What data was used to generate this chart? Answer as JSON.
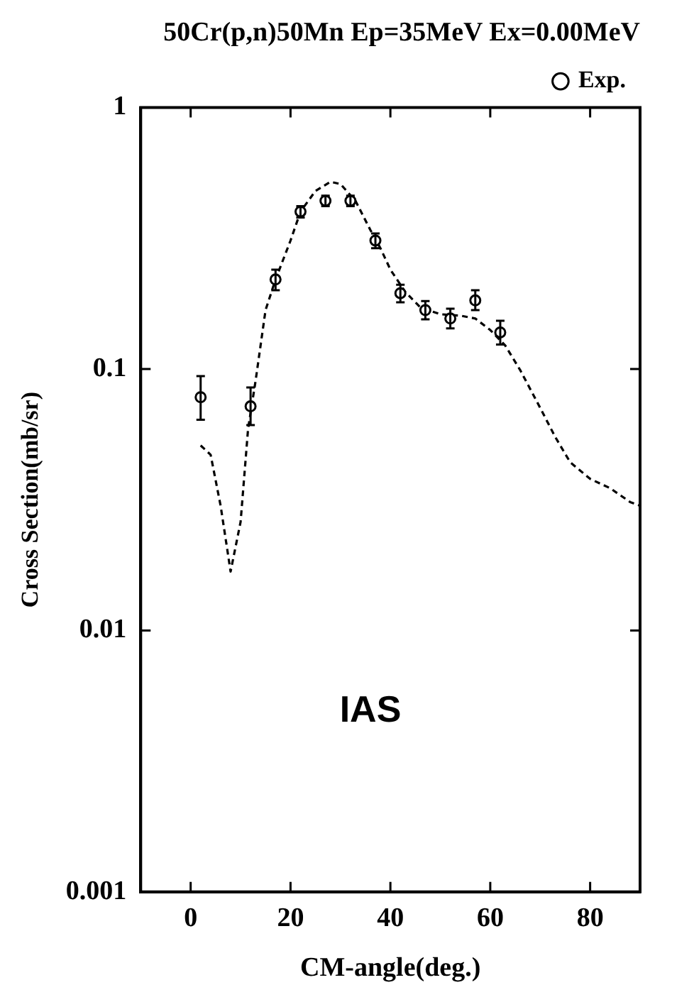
{
  "chart_data": {
    "type": "scatter",
    "title": "50Cr(p,n)50Mn Ep=35MeV Ex=0.00MeV",
    "xlabel": "CM-angle(deg.)",
    "ylabel": "Cross Section(mb/sr)",
    "annotations": [
      "IAS"
    ],
    "log": "y",
    "xlim": [
      -10,
      90
    ],
    "xticks": [
      0,
      20,
      40,
      60,
      80
    ],
    "ylim": [
      0.001,
      1
    ],
    "yticks": [
      0.001,
      0.01,
      0.1,
      1
    ],
    "legend": "top right",
    "grid": false,
    "series": [
      {
        "name": "Exp.",
        "color": "#000000",
        "marker": "circle",
        "x": [
          2,
          12,
          17,
          22,
          27,
          32,
          37,
          42,
          47,
          52,
          57,
          62
        ],
        "values": [
          0.078,
          0.072,
          0.22,
          0.4,
          0.44,
          0.44,
          0.31,
          0.195,
          0.168,
          0.156,
          0.183,
          0.138
        ],
        "errors": [
          [
            0.064,
            0.094
          ],
          [
            0.061,
            0.085
          ],
          [
            0.2,
            0.24
          ],
          [
            0.38,
            0.42
          ],
          [
            0.42,
            0.46
          ],
          [
            0.42,
            0.46
          ],
          [
            0.29,
            0.33
          ],
          [
            0.18,
            0.21
          ],
          [
            0.155,
            0.182
          ],
          [
            0.143,
            0.17
          ],
          [
            0.168,
            0.2
          ],
          [
            0.124,
            0.153
          ]
        ]
      },
      {
        "type": "line",
        "color": "#000000",
        "line_style": "dashed",
        "marker": "none",
        "x": [
          2,
          4,
          6,
          8,
          10,
          11.5,
          13,
          15,
          17,
          20,
          22,
          25,
          28,
          30,
          33,
          36,
          38,
          40,
          43,
          46,
          50,
          54,
          57,
          60,
          63,
          66,
          70,
          73,
          76,
          80,
          84,
          88,
          90
        ],
        "values": [
          0.051,
          0.047,
          0.03,
          0.0168,
          0.026,
          0.059,
          0.09,
          0.168,
          0.22,
          0.31,
          0.4,
          0.48,
          0.52,
          0.51,
          0.44,
          0.34,
          0.29,
          0.24,
          0.197,
          0.172,
          0.162,
          0.16,
          0.156,
          0.141,
          0.123,
          0.099,
          0.071,
          0.055,
          0.044,
          0.038,
          0.035,
          0.031,
          0.03
        ]
      }
    ]
  }
}
